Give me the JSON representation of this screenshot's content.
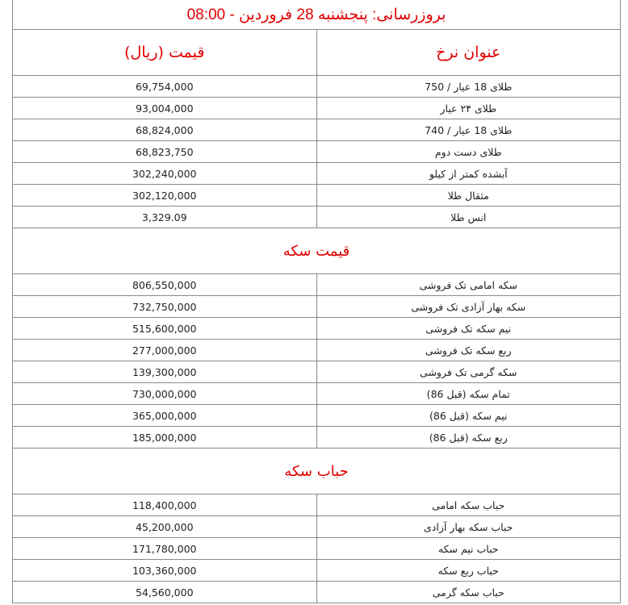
{
  "title": "بروزرسانی: پنجشنبه 28 فروردین - 08:00",
  "header": {
    "name": "عنوان نرخ",
    "price": "قیمت (ریال)"
  },
  "sections": [
    {
      "title": "",
      "rows": [
        {
          "name": "طلای 18 عیار / 750",
          "price": "69,754,000"
        },
        {
          "name": "طلای ۲۴ عیار",
          "price": "93,004,000"
        },
        {
          "name": "طلای 18 عیار / 740",
          "price": "68,824,000"
        },
        {
          "name": "طلای دست دوم",
          "price": "68,823,750"
        },
        {
          "name": "آبشده کمتر از کیلو",
          "price": "302,240,000"
        },
        {
          "name": "مثقال طلا",
          "price": "302,120,000"
        },
        {
          "name": "انس طلا",
          "price": "3,329.09"
        }
      ]
    },
    {
      "title": "قیمت سکه",
      "rows": [
        {
          "name": "سکه امامی تک فروشی",
          "price": "806,550,000"
        },
        {
          "name": "سکه بهار آزادی تک فروشی",
          "price": "732,750,000"
        },
        {
          "name": "نیم سکه تک فروشی",
          "price": "515,600,000"
        },
        {
          "name": "ربع سکه تک فروشی",
          "price": "277,000,000"
        },
        {
          "name": "سکه گرمی تک فروشی",
          "price": "139,300,000"
        },
        {
          "name": "تمام سکه (قبل 86)",
          "price": "730,000,000"
        },
        {
          "name": "نیم سکه (قبل 86)",
          "price": "365,000,000"
        },
        {
          "name": "ربع سکه (قبل 86)",
          "price": "185,000,000"
        }
      ]
    },
    {
      "title": "حباب سکه",
      "rows": [
        {
          "name": "حباب سکه امامی",
          "price": "118,400,000"
        },
        {
          "name": "حباب سکه بهار آزادی",
          "price": "45,200,000"
        },
        {
          "name": "حباب نیم سکه",
          "price": "171,780,000"
        },
        {
          "name": "حباب ربع سکه",
          "price": "103,360,000"
        },
        {
          "name": "حباب سکه گرمی",
          "price": "54,560,000"
        }
      ]
    }
  ]
}
